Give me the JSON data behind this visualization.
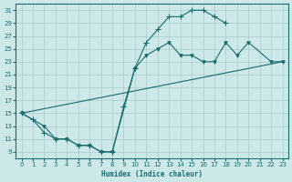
{
  "xlabel": "Humidex (Indice chaleur)",
  "bg_color": "#cce8e8",
  "line_color": "#1a6b6b",
  "grid_color": "#aacccc",
  "xlim": [
    -0.5,
    23.5
  ],
  "ylim": [
    8,
    32
  ],
  "xticks": [
    0,
    1,
    2,
    3,
    4,
    5,
    6,
    7,
    8,
    9,
    10,
    11,
    12,
    13,
    14,
    15,
    16,
    17,
    18,
    19,
    20,
    21,
    22,
    23
  ],
  "yticks": [
    9,
    11,
    13,
    15,
    17,
    19,
    21,
    23,
    25,
    27,
    29,
    31
  ],
  "line1_x": [
    0,
    1,
    2,
    3,
    4,
    5,
    6,
    7,
    8,
    9,
    10,
    11,
    12,
    13,
    14,
    15,
    16,
    17,
    18
  ],
  "line1_y": [
    15,
    14,
    12,
    11,
    11,
    10,
    10,
    9,
    9,
    16,
    22,
    26,
    28,
    30,
    30,
    31,
    31,
    30,
    29
  ],
  "line2_x": [
    0,
    2,
    3,
    4,
    5,
    6,
    7,
    8,
    10,
    11,
    12,
    13,
    14,
    15,
    16,
    17,
    18,
    19,
    20,
    22,
    23
  ],
  "line2_y": [
    15,
    13,
    11,
    11,
    10,
    10,
    9,
    9,
    22,
    24,
    25,
    26,
    24,
    24,
    23,
    23,
    26,
    24,
    26,
    23,
    23
  ],
  "line3_x": [
    0,
    23
  ],
  "line3_y": [
    15,
    23
  ]
}
